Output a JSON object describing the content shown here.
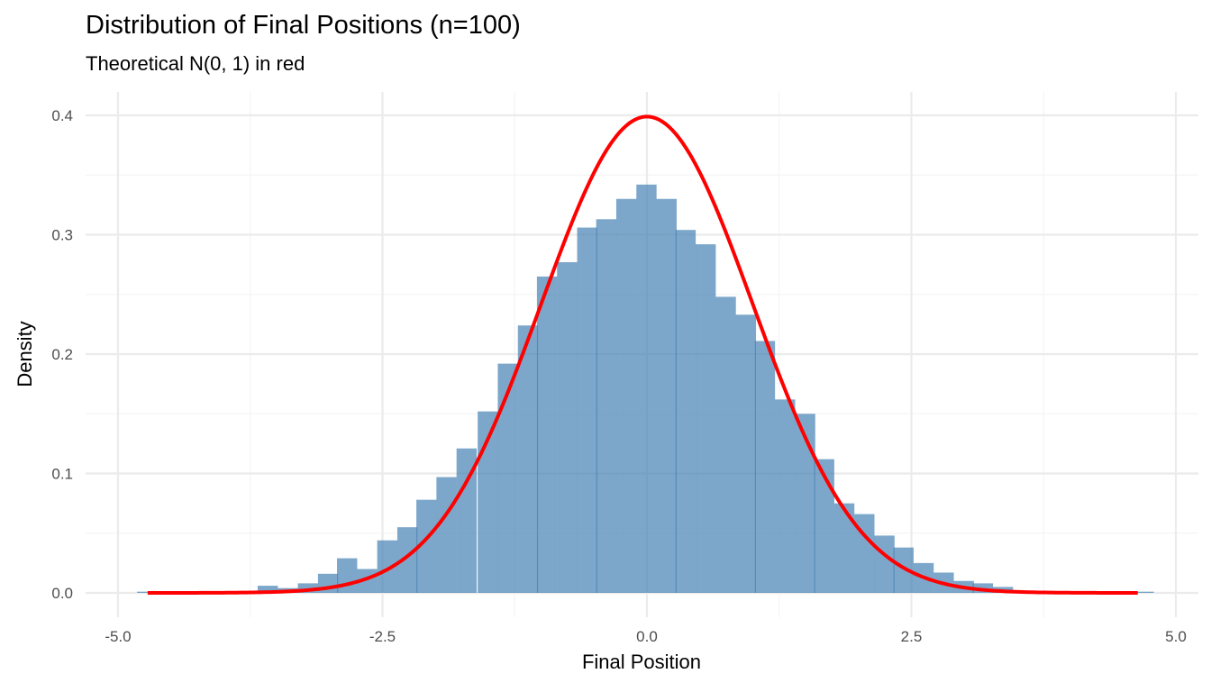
{
  "chart_data": {
    "type": "bar",
    "title": "Distribution of Final Positions (n=100)",
    "subtitle": "Theoretical N(0, 1) in red",
    "xlabel": "Final Position",
    "ylabel": "Density",
    "xlim": [
      -5.0,
      5.0
    ],
    "ylim": [
      0.0,
      0.4
    ],
    "x_ticks": [
      "-5.0",
      "-2.5",
      "0.0",
      "2.5",
      "5.0"
    ],
    "x_tick_values": [
      -5.0,
      -2.5,
      0.0,
      2.5,
      5.0
    ],
    "y_ticks": [
      "0.0",
      "0.1",
      "0.2",
      "0.3",
      "0.4"
    ],
    "y_tick_values": [
      0.0,
      0.1,
      0.2,
      0.3,
      0.4
    ],
    "grid": true,
    "legend": "none",
    "histogram": {
      "fill_color": "#4682B4",
      "opacity": 0.7,
      "bin_width": 0.1875,
      "bin_left_edges": [
        -4.82,
        -3.68,
        -3.49,
        -3.3,
        -3.11,
        -2.93,
        -2.74,
        -2.55,
        -2.36,
        -2.18,
        -1.99,
        -1.8,
        -1.6,
        -1.41,
        -1.22,
        -1.04,
        -0.85,
        -0.66,
        -0.48,
        -0.29,
        -0.1,
        0.09,
        0.27,
        0.46,
        0.65,
        0.84,
        1.02,
        1.21,
        1.4,
        1.58,
        1.77,
        1.96,
        2.15,
        2.33,
        2.52,
        2.71,
        2.9,
        3.08,
        3.27,
        4.6
      ],
      "densities": [
        0.001,
        0.006,
        0.004,
        0.008,
        0.016,
        0.029,
        0.02,
        0.044,
        0.055,
        0.078,
        0.097,
        0.121,
        0.152,
        0.192,
        0.224,
        0.265,
        0.277,
        0.306,
        0.313,
        0.33,
        0.342,
        0.33,
        0.304,
        0.292,
        0.248,
        0.233,
        0.211,
        0.162,
        0.15,
        0.112,
        0.075,
        0.066,
        0.048,
        0.038,
        0.025,
        0.017,
        0.01,
        0.008,
        0.005,
        0.001
      ]
    },
    "series": [
      {
        "name": "Theoretical N(0, 1)",
        "type": "line",
        "color": "#FF0000",
        "line_width": 4,
        "x_range": [
          -4.72,
          4.64
        ],
        "mean": 0,
        "sd": 1,
        "peak": 0.399
      }
    ]
  },
  "colors": {
    "background": "#FFFFFF",
    "grid_major": "#EBEBEB",
    "grid_minor": "#F4F4F4",
    "tick_label": "#4D4D4D",
    "bar_fill": "#7BA7CC",
    "curve": "#FF0000"
  }
}
